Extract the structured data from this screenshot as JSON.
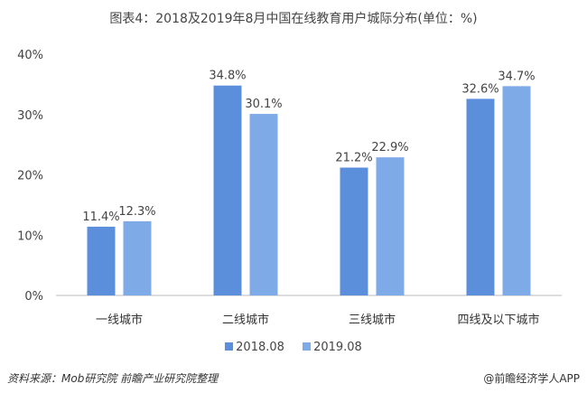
{
  "chart_data": {
    "type": "bar",
    "title": "图表4：2018及2019年8月中国在线教育用户城际分布(单位：%)",
    "categories": [
      "一线城市",
      "二线城市",
      "三线城市",
      "四线及以下城市"
    ],
    "series": [
      {
        "name": "2018.08",
        "values": [
          11.4,
          34.8,
          21.2,
          32.6
        ],
        "color": "#5b8fdc"
      },
      {
        "name": "2019.08",
        "values": [
          12.3,
          30.1,
          22.9,
          34.7
        ],
        "color": "#7eaae8"
      }
    ],
    "ylim": [
      0,
      40
    ],
    "yticks": [
      "0%",
      "10%",
      "20%",
      "30%",
      "40%"
    ],
    "grid": false,
    "legend": "bottom",
    "xlabel": "",
    "ylabel": ""
  },
  "footer": {
    "source": "资料来源：Mob研究院 前瞻产业研究院整理",
    "credit": "@前瞻经济学人APP"
  }
}
